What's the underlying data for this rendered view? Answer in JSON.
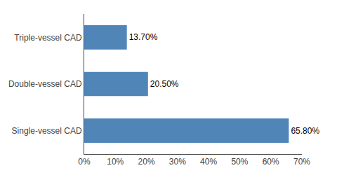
{
  "chart_data": {
    "type": "bar",
    "orientation": "horizontal",
    "categories": [
      "Single-vessel CAD",
      "Double-vessel CAD",
      "Triple-vessel CAD"
    ],
    "values": [
      65.8,
      20.5,
      13.7
    ],
    "value_labels": [
      "65.80%",
      "20.50%",
      "13.70%"
    ],
    "data_labels": true,
    "color": "#5085b8",
    "xlim": [
      0,
      70
    ],
    "xticks": [
      {
        "value": 0,
        "label": "0%"
      },
      {
        "value": 10,
        "label": "10%"
      },
      {
        "value": 20,
        "label": "20%"
      },
      {
        "value": 30,
        "label": "30%"
      },
      {
        "value": 40,
        "label": "40%"
      },
      {
        "value": 50,
        "label": "50%"
      },
      {
        "value": 60,
        "label": "60%"
      },
      {
        "value": 70,
        "label": "70%"
      }
    ],
    "grid": false
  }
}
